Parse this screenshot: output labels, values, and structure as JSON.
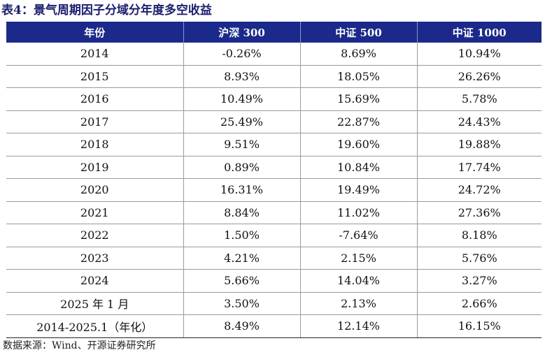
{
  "title": "表4：景气周期因子分域分年度多空收益",
  "table": {
    "headers": [
      "年份",
      "沪深 300",
      "中证 500",
      "中证 1000"
    ],
    "rows": [
      [
        "2014",
        "-0.26%",
        "8.69%",
        "10.94%"
      ],
      [
        "2015",
        "8.93%",
        "18.05%",
        "26.26%"
      ],
      [
        "2016",
        "10.49%",
        "15.69%",
        "5.78%"
      ],
      [
        "2017",
        "25.49%",
        "22.87%",
        "24.43%"
      ],
      [
        "2018",
        "9.51%",
        "19.60%",
        "19.88%"
      ],
      [
        "2019",
        "0.89%",
        "10.84%",
        "17.74%"
      ],
      [
        "2020",
        "16.31%",
        "19.49%",
        "24.72%"
      ],
      [
        "2021",
        "8.84%",
        "11.02%",
        "27.36%"
      ],
      [
        "2022",
        "1.50%",
        "-7.64%",
        "8.18%"
      ],
      [
        "2023",
        "4.21%",
        "2.15%",
        "5.76%"
      ],
      [
        "2024",
        "5.66%",
        "14.04%",
        "3.27%"
      ],
      [
        "2025 年 1 月",
        "3.50%",
        "2.13%",
        "2.66%"
      ],
      [
        "2014-2025.1（年化）",
        "8.49%",
        "12.14%",
        "16.15%"
      ]
    ]
  },
  "source": "数据来源：Wind、开源证券研究所",
  "colors": {
    "header_bg": "#1b2a8a",
    "title": "#1c1f6e"
  }
}
